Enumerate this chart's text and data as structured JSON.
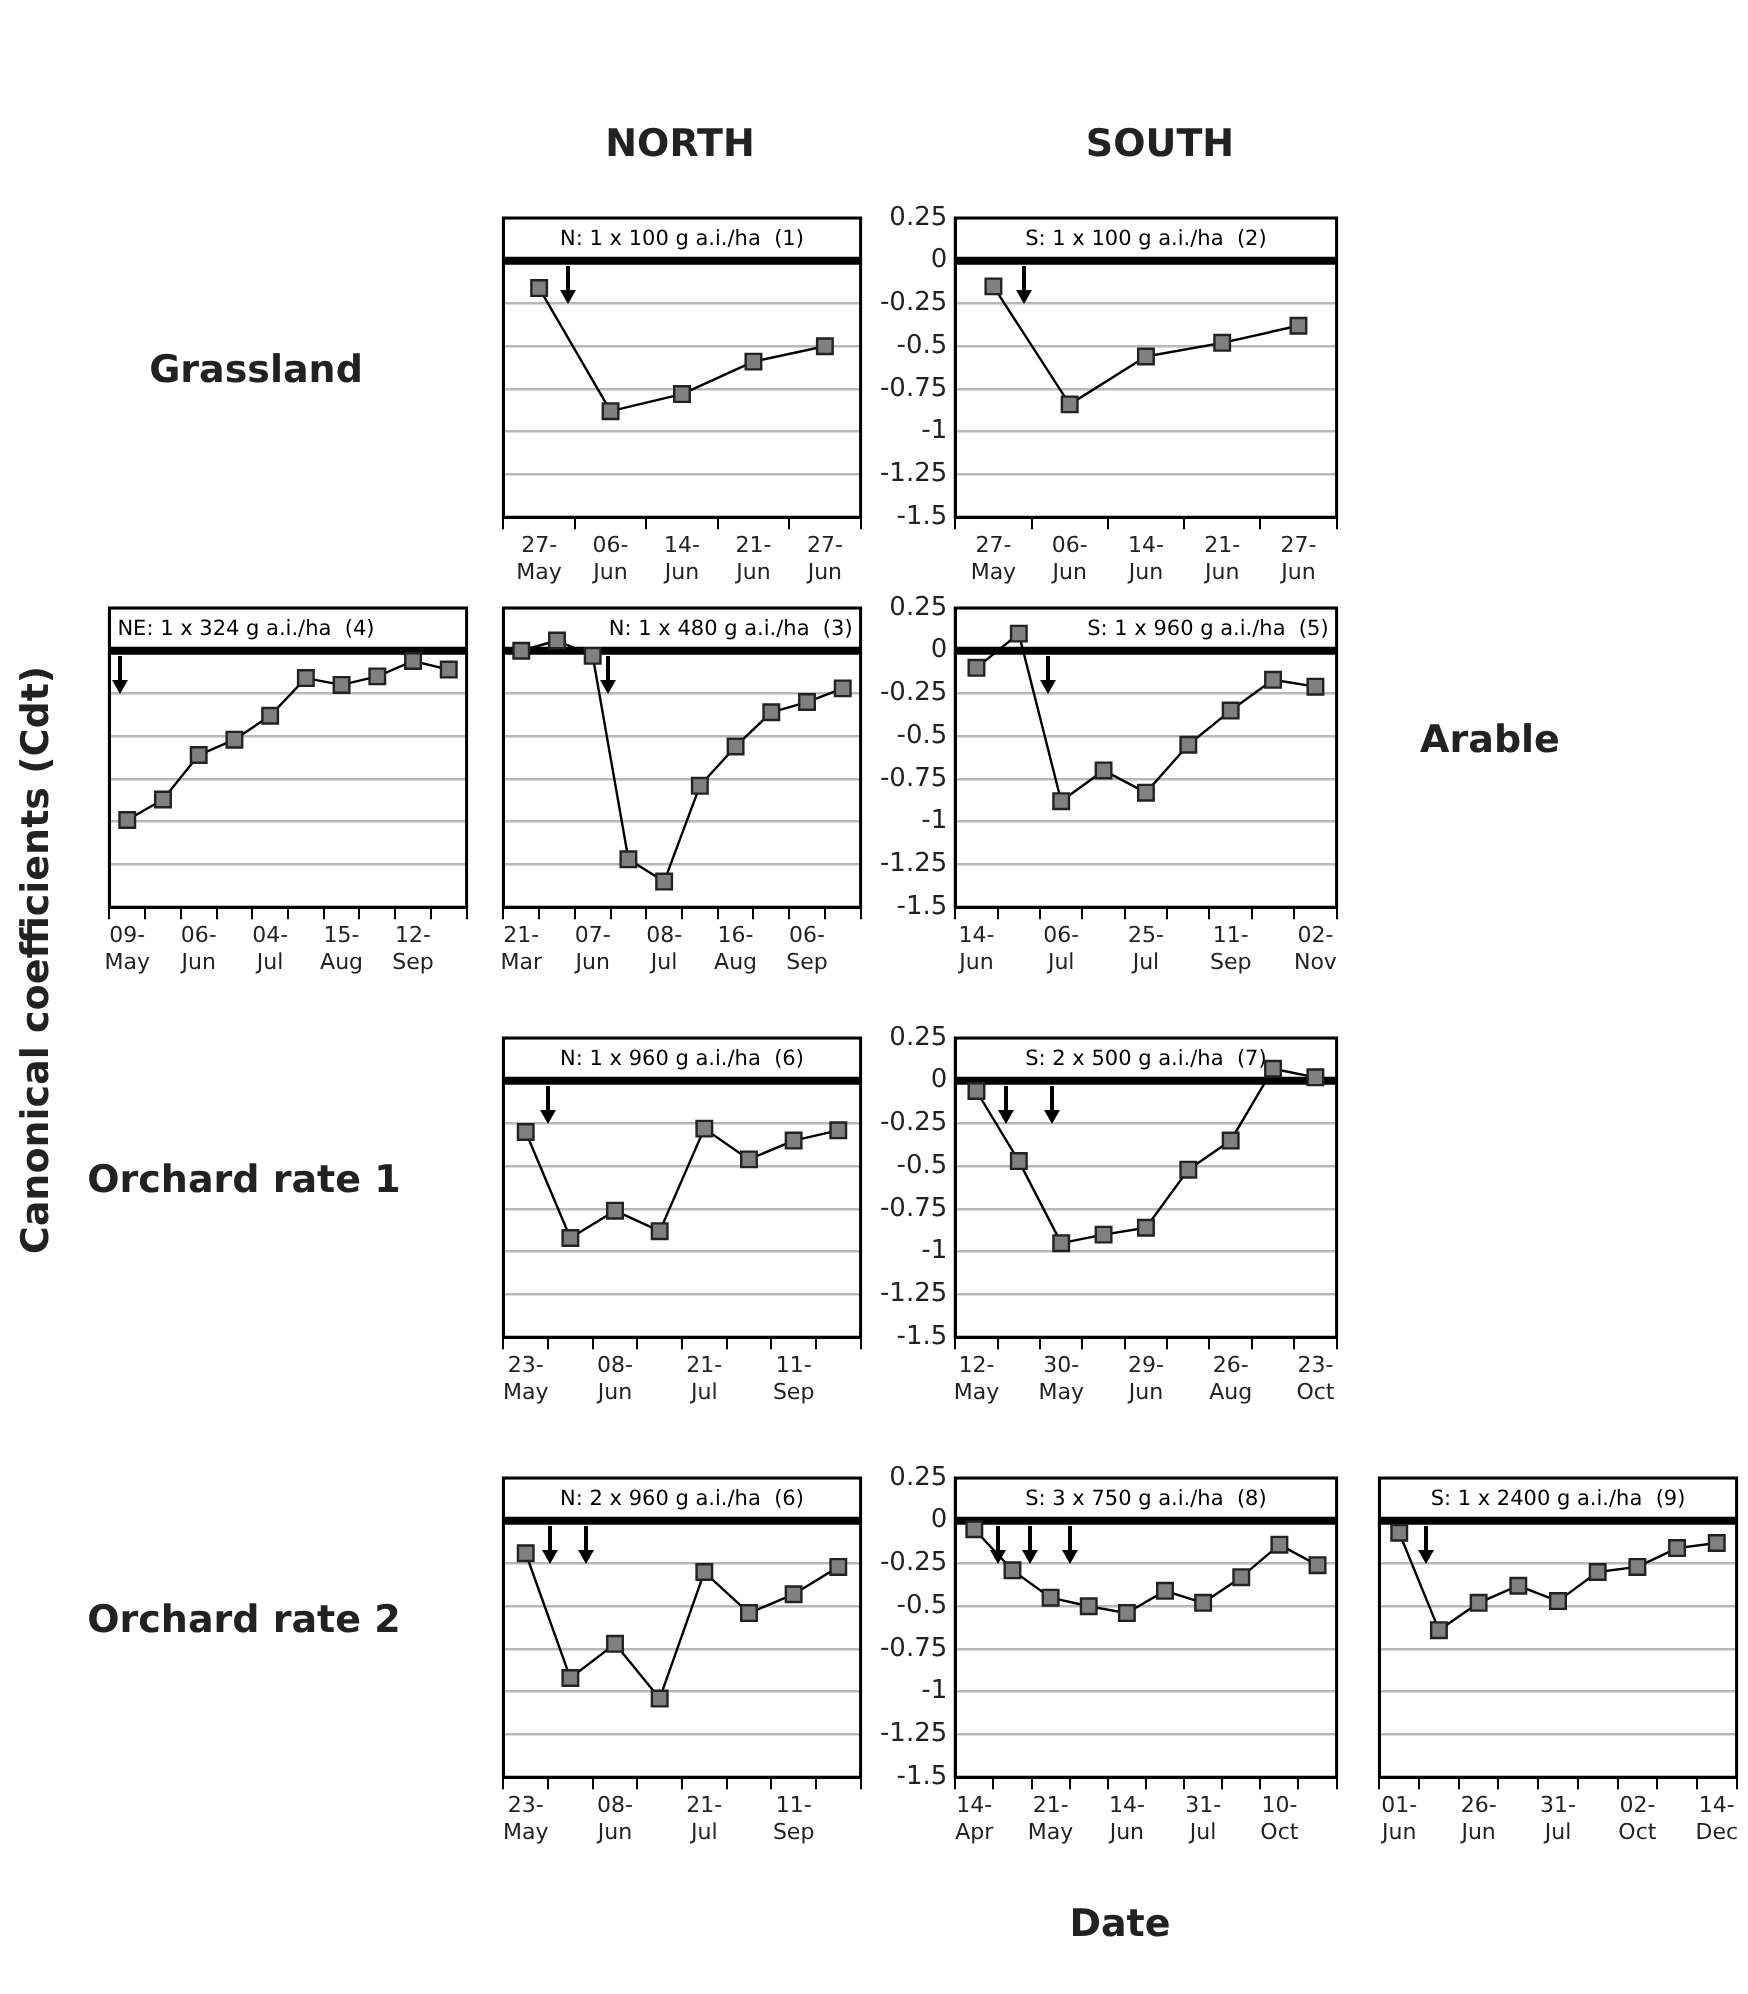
{
  "chart_data": [
    {
      "type": "line",
      "title": "N: 1 x 100 g a.i./ha  (1)",
      "annotations": [
        "NORTH",
        "Grassland"
      ],
      "categories": [
        "27- May",
        "06- Jun",
        "14- Jun",
        "21- Jun",
        "27- Jun"
      ],
      "series": [
        {
          "color": "#808080",
          "values": [
            -0.16,
            -0.88,
            -0.78,
            -0.59,
            -0.5
          ]
        }
      ],
      "ylim": [
        -1.5,
        0.25
      ],
      "yticks": [
        0.25,
        0,
        -0.25,
        -0.5,
        -0.75,
        -1,
        -1.25,
        -1.5
      ],
      "grid": "y",
      "marker": "square",
      "tick_labels": "x",
      "ref_lines": [
        {
          "axis": "y",
          "value": 0,
          "color": "#000000"
        }
      ]
    },
    {
      "type": "line",
      "title": "S: 1 x 100 g a.i./ha  (2)",
      "annotations": [
        "SOUTH"
      ],
      "categories": [
        "27- May",
        "06- Jun",
        "14- Jun",
        "21- Jun",
        "27- Jun"
      ],
      "series": [
        {
          "color": "#808080",
          "values": [
            -0.15,
            -0.84,
            -0.56,
            -0.48,
            -0.38
          ]
        }
      ],
      "ylim": [
        -1.5,
        0.25
      ],
      "yticks": [
        0.25,
        0,
        -0.25,
        -0.5,
        -0.75,
        -1,
        -1.25,
        -1.5
      ],
      "grid": "y",
      "marker": "square",
      "ref_lines": [
        {
          "axis": "y",
          "value": 0,
          "color": "#000000"
        }
      ]
    },
    {
      "type": "line",
      "title": "NE: 1 x 324 g a.i./ha  (4)",
      "ylabel": "Canonical coefficients (Cdt)",
      "categories": [
        "09- May",
        null,
        "06- Jun",
        null,
        "04- Jul",
        null,
        "15- Aug",
        null,
        "12- Sep",
        null
      ],
      "series": [
        {
          "color": "#808080",
          "values": [
            -0.99,
            -0.87,
            -0.61,
            -0.52,
            -0.38,
            -0.16,
            -0.2,
            -0.15,
            -0.06,
            -0.11
          ]
        }
      ],
      "ylim": [
        -1.5,
        0.25
      ],
      "yticks": [
        0.25,
        0,
        -0.25,
        -0.5,
        -0.75,
        -1,
        -1.25,
        -1.5
      ],
      "grid": "y",
      "marker": "square",
      "tick_labels": "x",
      "ref_lines": [
        {
          "axis": "y",
          "value": 0,
          "color": "#000000"
        }
      ]
    },
    {
      "type": "line",
      "title": "N: 1 x 480 g a.i./ha  (3)",
      "categories": [
        "21- Mar",
        null,
        "07- Jun",
        null,
        "08- Jul",
        null,
        "16- Aug",
        null,
        "06- Sep",
        null
      ],
      "series": [
        {
          "color": "#808080",
          "values": [
            0,
            0.06,
            -0.03,
            -1.22,
            -1.35,
            -0.79,
            -0.56,
            -0.36,
            -0.3,
            -0.22
          ]
        }
      ],
      "ylim": [
        -1.5,
        0.25
      ],
      "yticks": [
        0.25,
        0,
        -0.25,
        -0.5,
        -0.75,
        -1,
        -1.25,
        -1.5
      ],
      "grid": "y",
      "marker": "square",
      "tick_labels": "x",
      "ref_lines": [
        {
          "axis": "y",
          "value": 0,
          "color": "#000000"
        }
      ]
    },
    {
      "type": "line",
      "title": "S: 1 x 960 g a.i./ha  (5)",
      "annotations": [
        "Arable"
      ],
      "categories": [
        "14- Jun",
        null,
        "06- Jul",
        null,
        "25- Jul",
        null,
        "11- Sep",
        null,
        "02- Nov"
      ],
      "series": [
        {
          "color": "#808080",
          "values": [
            -0.1,
            0.1,
            -0.88,
            -0.7,
            -0.83,
            -0.55,
            -0.35,
            -0.17,
            -0.21
          ]
        }
      ],
      "ylim": [
        -1.5,
        0.25
      ],
      "yticks": [
        0.25,
        0,
        -0.25,
        -0.5,
        -0.75,
        -1,
        -1.25,
        -1.5
      ],
      "grid": "y",
      "marker": "square",
      "ref_lines": [
        {
          "axis": "y",
          "value": 0,
          "color": "#000000"
        }
      ]
    },
    {
      "type": "line",
      "title": "N: 1 x 960 g a.i./ha  (6)",
      "annotations": [
        "Orchard rate 1"
      ],
      "categories": [
        "23- May",
        null,
        "08- Jun",
        null,
        "21- Jul",
        null,
        "11- Sep",
        null
      ],
      "series": [
        {
          "color": "#808080",
          "values": [
            -0.3,
            -0.92,
            -0.76,
            -0.88,
            -0.28,
            -0.46,
            -0.35,
            -0.29
          ]
        }
      ],
      "ylim": [
        -1.5,
        0.25
      ],
      "yticks": [
        0.25,
        0,
        -0.25,
        -0.5,
        -0.75,
        -1,
        -1.25,
        -1.5
      ],
      "grid": "y",
      "marker": "square",
      "tick_labels": "x",
      "ref_lines": [
        {
          "axis": "y",
          "value": 0,
          "color": "#000000"
        }
      ]
    },
    {
      "type": "line",
      "title": "S: 2 x 500 g a.i./ha  (7)",
      "categories": [
        "12- May",
        null,
        "30- May",
        null,
        "29- Jun",
        null,
        "26- Aug",
        null,
        "23- Oct"
      ],
      "series": [
        {
          "color": "#808080",
          "values": [
            -0.06,
            -0.47,
            -0.95,
            -0.9,
            -0.86,
            -0.52,
            -0.35,
            0.07,
            0.02
          ]
        }
      ],
      "ylim": [
        -1.5,
        0.25
      ],
      "yticks": [
        0.25,
        0,
        -0.25,
        -0.5,
        -0.75,
        -1,
        -1.25,
        -1.5
      ],
      "grid": "y",
      "marker": "square",
      "ref_lines": [
        {
          "axis": "y",
          "value": 0,
          "color": "#000000"
        }
      ]
    },
    {
      "type": "line",
      "title": "N: 2 x 960 g a.i./ha  (6)",
      "annotations": [
        "Orchard rate 2"
      ],
      "categories": [
        "23- May",
        null,
        "08- Jun",
        null,
        "21- Jul",
        null,
        "11- Sep",
        null
      ],
      "series": [
        {
          "color": "#808080",
          "values": [
            -0.19,
            -0.92,
            -0.72,
            -1.04,
            -0.3,
            -0.54,
            -0.43,
            -0.27
          ]
        }
      ],
      "ylim": [
        -1.5,
        0.25
      ],
      "yticks": [
        0.25,
        0,
        -0.25,
        -0.5,
        -0.75,
        -1,
        -1.25,
        -1.5
      ],
      "grid": "y",
      "marker": "square",
      "tick_labels": "x",
      "ref_lines": [
        {
          "axis": "y",
          "value": 0,
          "color": "#000000"
        }
      ]
    },
    {
      "type": "line",
      "title": "S: 3 x 750 g a.i./ha  (8)",
      "xlabel": "Date",
      "categories": [
        "14- Apr",
        null,
        "21- May",
        null,
        "14- Jun",
        null,
        "31- Jul",
        null,
        "10- Oct",
        null
      ],
      "series": [
        {
          "color": "#808080",
          "values": [
            -0.05,
            -0.29,
            -0.45,
            -0.5,
            -0.54,
            -0.41,
            -0.48,
            -0.33,
            -0.14,
            -0.26
          ]
        }
      ],
      "ylim": [
        -1.5,
        0.25
      ],
      "yticks": [
        0.25,
        0,
        -0.25,
        -0.5,
        -0.75,
        -1,
        -1.25,
        -1.5
      ],
      "grid": "y",
      "marker": "square",
      "ref_lines": [
        {
          "axis": "y",
          "value": 0,
          "color": "#000000"
        }
      ]
    },
    {
      "type": "line",
      "title": "S: 1 x 2400 g a.i./ha  (9)",
      "categories": [
        "01- Jun",
        null,
        "26- Jun",
        null,
        "31- Jul",
        null,
        "02- Oct",
        null,
        "14- Dec"
      ],
      "series": [
        {
          "color": "#808080",
          "values": [
            -0.07,
            -0.64,
            -0.48,
            -0.38,
            -0.47,
            -0.3,
            -0.27,
            -0.16,
            -0.13
          ]
        }
      ],
      "ylim": [
        -1.5,
        0.25
      ],
      "yticks": [
        0.25,
        0,
        -0.25,
        -0.5,
        -0.75,
        -1,
        -1.25,
        -1.5
      ],
      "grid": "y",
      "marker": "square",
      "tick_labels": "x",
      "ref_lines": [
        {
          "axis": "y",
          "value": 0,
          "color": "#000000"
        }
      ]
    }
  ]
}
